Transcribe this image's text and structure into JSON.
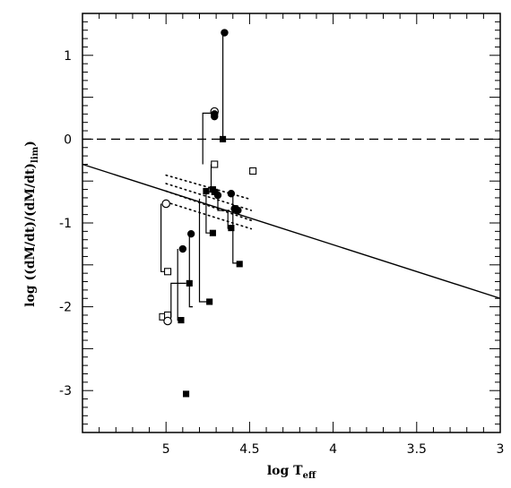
{
  "chart_data": {
    "type": "scatter",
    "title": "",
    "xlabel_main": "log T",
    "xlabel_sub": "eff",
    "ylabel_main": "log ((dM/dt)/(dM/dt)",
    "ylabel_sub": "lim",
    "ylabel_close": ")",
    "xlim": [
      5.5,
      3.0
    ],
    "ylim": [
      -3.5,
      1.5
    ],
    "x_reversed": true,
    "x_ticks": [
      {
        "value": 5,
        "label": "5"
      },
      {
        "value": 4.5,
        "label": "4.5"
      },
      {
        "value": 4,
        "label": "4"
      },
      {
        "value": 3.5,
        "label": "3.5"
      },
      {
        "value": 3,
        "label": "3"
      }
    ],
    "y_ticks": [
      {
        "value": 1,
        "label": "1"
      },
      {
        "value": 0,
        "label": "0"
      },
      {
        "value": -1,
        "label": "-1"
      },
      {
        "value": -2,
        "label": "-2"
      },
      {
        "value": -3,
        "label": "-3"
      }
    ],
    "reference_lines": [
      {
        "kind": "dashed",
        "points": [
          [
            5.5,
            0
          ],
          [
            3.0,
            0
          ]
        ]
      },
      {
        "kind": "solid",
        "points": [
          [
            5.5,
            -0.3
          ],
          [
            3.0,
            -1.9
          ]
        ]
      }
    ],
    "dotted_lines": [
      [
        [
          5.0,
          -0.43
        ],
        [
          4.49,
          -0.72
        ]
      ],
      [
        [
          5.0,
          -0.53
        ],
        [
          4.49,
          -0.85
        ]
      ],
      [
        [
          5.0,
          -0.62
        ],
        [
          4.49,
          -0.97
        ]
      ],
      [
        [
          5.0,
          -0.75
        ],
        [
          4.49,
          -1.07
        ]
      ]
    ],
    "connectors": [
      {
        "path": [
          [
            5.03,
            -0.77
          ],
          [
            5.03,
            -1.58
          ],
          [
            4.99,
            -1.58
          ]
        ]
      },
      {
        "path": [
          [
            5.02,
            -2.14
          ],
          [
            5.02,
            -2.11
          ],
          [
            5.0,
            -2.11
          ]
        ]
      },
      {
        "path": [
          [
            4.97,
            -2.13
          ],
          [
            4.97,
            -1.72
          ],
          [
            4.88,
            -1.72
          ]
        ]
      },
      {
        "path": [
          [
            4.93,
            -1.31
          ],
          [
            4.93,
            -2.16
          ],
          [
            4.91,
            -2.16
          ]
        ]
      },
      {
        "path": [
          [
            4.86,
            -1.13
          ],
          [
            4.86,
            -2.0
          ],
          [
            4.84,
            -2.0
          ]
        ]
      },
      {
        "path": [
          [
            4.8,
            -0.71
          ],
          [
            4.8,
            -1.94
          ],
          [
            4.74,
            -1.94
          ]
        ]
      },
      {
        "path": [
          [
            4.78,
            -0.3
          ],
          [
            4.78,
            0.31
          ],
          [
            4.71,
            0.31
          ]
        ]
      },
      {
        "path": [
          [
            4.73,
            -0.3
          ],
          [
            4.73,
            -0.63
          ],
          [
            4.77,
            -0.63
          ]
        ]
      },
      {
        "path": [
          [
            4.76,
            -0.6
          ],
          [
            4.76,
            -1.12
          ],
          [
            4.71,
            -1.12
          ]
        ]
      },
      {
        "path": [
          [
            4.69,
            -0.6
          ],
          [
            4.69,
            -0.85
          ],
          [
            4.62,
            -0.85
          ]
        ]
      },
      {
        "path": [
          [
            4.66,
            1.27
          ],
          [
            4.66,
            0.0
          ],
          [
            4.66,
            0.0
          ]
        ]
      },
      {
        "path": [
          [
            4.6,
            -0.64
          ],
          [
            4.6,
            -1.48
          ],
          [
            4.57,
            -1.48
          ]
        ]
      },
      {
        "path": [
          [
            4.63,
            -0.88
          ],
          [
            4.63,
            -1.07
          ]
        ]
      }
    ],
    "points": [
      {
        "x": 4.65,
        "y": 1.27,
        "marker": "filled-circle"
      },
      {
        "x": 4.71,
        "y": 0.33,
        "marker": "open-circle"
      },
      {
        "x": 4.71,
        "y": 0.3,
        "marker": "filled-circle"
      },
      {
        "x": 4.71,
        "y": 0.27,
        "marker": "filled-circle"
      },
      {
        "x": 4.66,
        "y": 0.0,
        "marker": "filled-square"
      },
      {
        "x": 4.71,
        "y": -0.3,
        "marker": "open-square"
      },
      {
        "x": 4.48,
        "y": -0.38,
        "marker": "open-square"
      },
      {
        "x": 4.76,
        "y": -0.62,
        "marker": "filled-square"
      },
      {
        "x": 4.72,
        "y": -0.6,
        "marker": "filled-square"
      },
      {
        "x": 4.71,
        "y": -0.63,
        "marker": "filled-square"
      },
      {
        "x": 4.61,
        "y": -0.65,
        "marker": "filled-circle"
      },
      {
        "x": 4.69,
        "y": -0.67,
        "marker": "filled-circle"
      },
      {
        "x": 5.0,
        "y": -0.77,
        "marker": "open-circle"
      },
      {
        "x": 4.57,
        "y": -0.85,
        "marker": "filled-circle"
      },
      {
        "x": 4.59,
        "y": -0.83,
        "marker": "filled-circle"
      },
      {
        "x": 4.61,
        "y": -1.06,
        "marker": "filled-square"
      },
      {
        "x": 4.72,
        "y": -1.12,
        "marker": "filled-square"
      },
      {
        "x": 4.85,
        "y": -1.13,
        "marker": "filled-circle"
      },
      {
        "x": 4.9,
        "y": -1.31,
        "marker": "filled-circle"
      },
      {
        "x": 4.56,
        "y": -1.49,
        "marker": "filled-square"
      },
      {
        "x": 4.99,
        "y": -1.58,
        "marker": "open-square"
      },
      {
        "x": 4.86,
        "y": -1.72,
        "marker": "filled-square"
      },
      {
        "x": 4.74,
        "y": -1.94,
        "marker": "filled-square"
      },
      {
        "x": 5.02,
        "y": -2.12,
        "marker": "open-square"
      },
      {
        "x": 4.99,
        "y": -2.1,
        "marker": "open-square"
      },
      {
        "x": 4.99,
        "y": -2.17,
        "marker": "open-circle"
      },
      {
        "x": 4.91,
        "y": -2.16,
        "marker": "filled-square"
      },
      {
        "x": 4.88,
        "y": -3.04,
        "marker": "filled-square"
      }
    ]
  }
}
